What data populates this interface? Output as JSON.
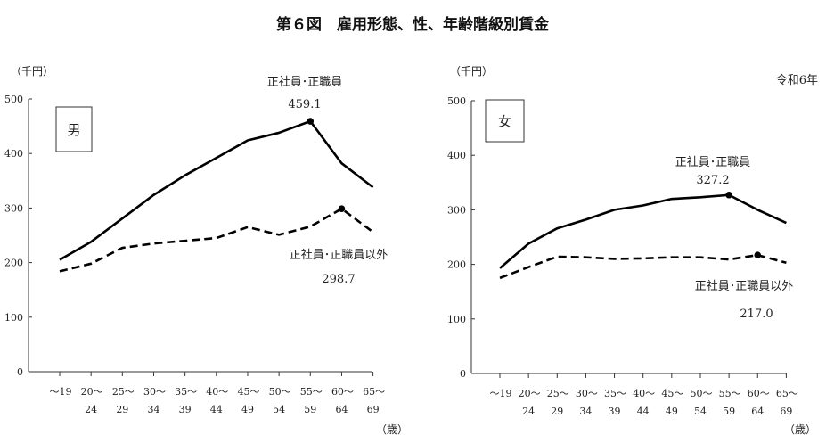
{
  "title": "第６図　雇用形態、性、年齢階級別賃金",
  "year_note": "令和6年",
  "chart_data": [
    {
      "type": "line",
      "panel_label": "男",
      "ylabel": "（千円）",
      "xlabel": "（歳）",
      "ylim": [
        0,
        500
      ],
      "yticks": [
        "0",
        "100",
        "200",
        "300",
        "400",
        "500"
      ],
      "categories": [
        [
          "～19",
          ""
        ],
        [
          "20～",
          "24"
        ],
        [
          "25～",
          "29"
        ],
        [
          "30～",
          "34"
        ],
        [
          "35～",
          "39"
        ],
        [
          "40～",
          "44"
        ],
        [
          "45～",
          "49"
        ],
        [
          "50～",
          "54"
        ],
        [
          "55～",
          "59"
        ],
        [
          "60～",
          "64"
        ],
        [
          "65～",
          "69"
        ]
      ],
      "grid": false,
      "series": [
        {
          "name": "正社員･正職員",
          "style": "solid",
          "values": [
            205,
            238,
            281,
            324,
            360,
            392,
            424,
            438,
            459.1,
            382,
            338
          ],
          "peak_index": 8,
          "peak_label": "459.1"
        },
        {
          "name": "正社員･正職員以外",
          "style": "dashed",
          "values": [
            184,
            198,
            227,
            235,
            240,
            245,
            265,
            251,
            266,
            298.7,
            256
          ],
          "peak_index": 9,
          "peak_label": "298.7"
        }
      ]
    },
    {
      "type": "line",
      "panel_label": "女",
      "ylabel": "（千円）",
      "xlabel": "（歳）",
      "ylim": [
        0,
        500
      ],
      "yticks": [
        "0",
        "100",
        "200",
        "300",
        "400",
        "500"
      ],
      "categories": [
        [
          "～19",
          ""
        ],
        [
          "20～",
          "24"
        ],
        [
          "25～",
          "29"
        ],
        [
          "30～",
          "34"
        ],
        [
          "35～",
          "39"
        ],
        [
          "40～",
          "44"
        ],
        [
          "45～",
          "49"
        ],
        [
          "50～",
          "54"
        ],
        [
          "55～",
          "59"
        ],
        [
          "60～",
          "64"
        ],
        [
          "65～",
          "69"
        ]
      ],
      "grid": false,
      "series": [
        {
          "name": "正社員･正職員",
          "style": "solid",
          "values": [
            193,
            238,
            266,
            282,
            300,
            308,
            320,
            323,
            327.2,
            300,
            276
          ],
          "peak_index": 8,
          "peak_label": "327.2"
        },
        {
          "name": "正社員･正職員以外",
          "style": "dashed",
          "values": [
            175,
            195,
            214,
            213,
            210,
            211,
            213,
            213,
            209,
            217.0,
            203
          ],
          "peak_index": 9,
          "peak_label": "217.0"
        }
      ]
    }
  ]
}
